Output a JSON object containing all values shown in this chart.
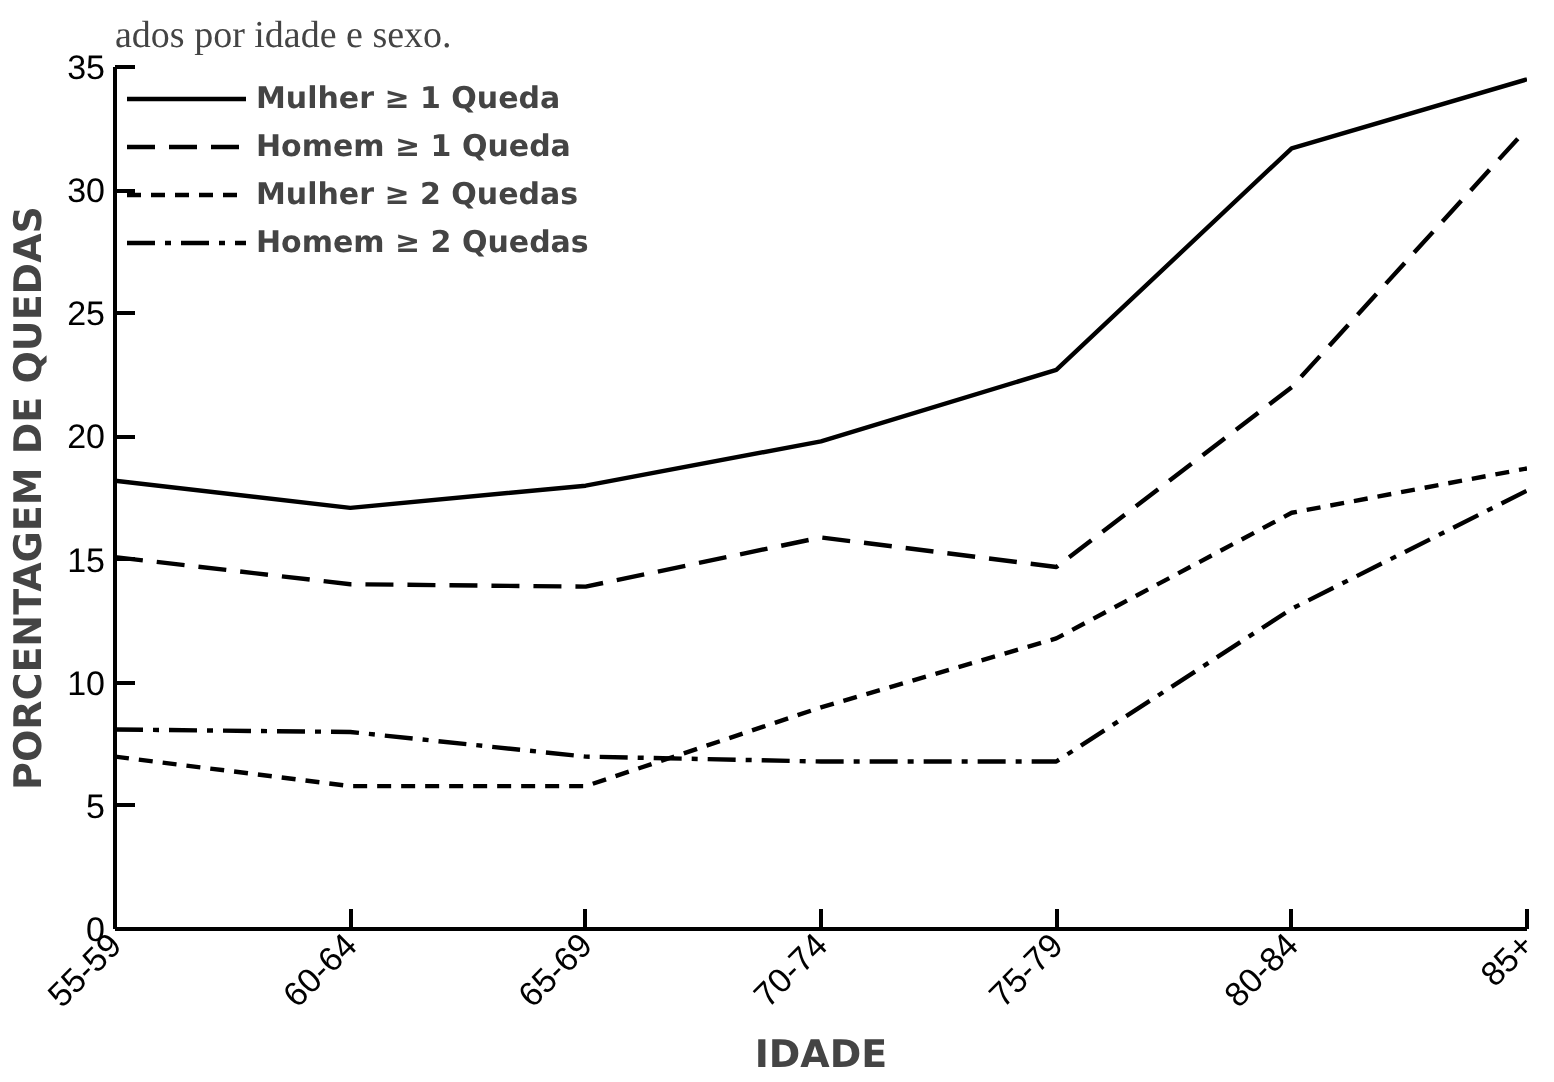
{
  "chart_data": {
    "type": "line",
    "title": "ados por idade e sexo.",
    "xlabel": "IDADE",
    "ylabel": "PORCENTAGEM DE QUEDAS",
    "categories": [
      "55-59",
      "60-64",
      "65-69",
      "70-74",
      "75-79",
      "80-84",
      "85+"
    ],
    "ylim": [
      0,
      35
    ],
    "yticks": [
      0,
      5,
      10,
      15,
      20,
      25,
      30,
      35
    ],
    "grid": false,
    "legend": "top left",
    "marker": "none",
    "series": [
      {
        "name": "Mulher ≥ 1 Queda",
        "color": "#000000",
        "line_style": "solid",
        "values": [
          18.2,
          17.1,
          18.0,
          19.8,
          22.7,
          31.7,
          34.5
        ]
      },
      {
        "name": "Homem ≥ 1 Queda",
        "color": "#000000",
        "line_style": "longdash",
        "values": [
          15.1,
          14.0,
          13.9,
          15.9,
          14.7,
          22.0,
          32.5
        ]
      },
      {
        "name": "Mulher ≥ 2 Quedas",
        "color": "#000000",
        "line_style": "dashed",
        "values": [
          7.0,
          5.8,
          5.8,
          9.0,
          11.8,
          16.9,
          18.7
        ]
      },
      {
        "name": "Homem ≥ 2 Quedas",
        "color": "#000000",
        "line_style": "dashdot",
        "values": [
          8.1,
          8.0,
          7.0,
          6.8,
          6.8,
          13.0,
          17.8
        ]
      }
    ]
  }
}
